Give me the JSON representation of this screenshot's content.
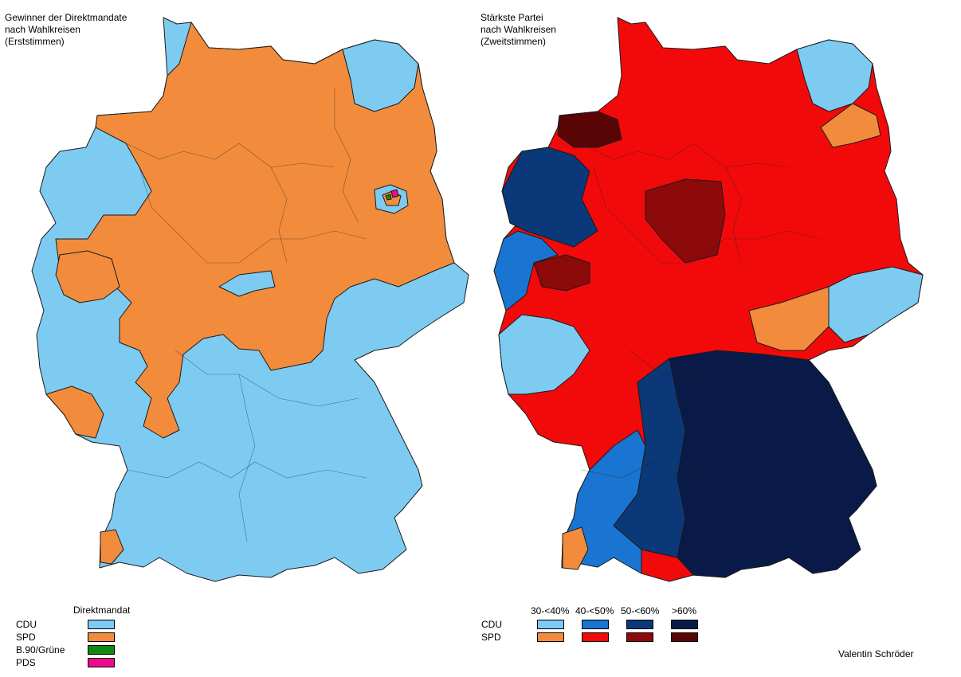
{
  "left_map": {
    "title": "Gewinner der Direktmandate\nnach Wahlkreisen\n(Erststimmen)",
    "legend": {
      "heading": "Direktmandat",
      "items": [
        {
          "label": "CDU",
          "color": "#7ecbf2"
        },
        {
          "label": "SPD",
          "color": "#f28c3c"
        },
        {
          "label": "B.90/Grüne",
          "color": "#118a11"
        },
        {
          "label": "PDS",
          "color": "#ee0a8c"
        }
      ]
    }
  },
  "right_map": {
    "title": "Stärkste Partei\nnach Wahlkreisen\n(Zweitstimmen)",
    "legend": {
      "columns": [
        "30-<40%",
        "40-<50%",
        "50-<60%",
        ">60%"
      ],
      "rows": [
        {
          "label": "CDU",
          "colors": [
            "#7ecbf2",
            "#1a75d2",
            "#0b3878",
            "#0a1a48"
          ]
        },
        {
          "label": "SPD",
          "colors": [
            "#f28c3c",
            "#f20a0a",
            "#8c0a0a",
            "#5a0505"
          ]
        }
      ]
    }
  },
  "credit": "Valentin Schröder"
}
